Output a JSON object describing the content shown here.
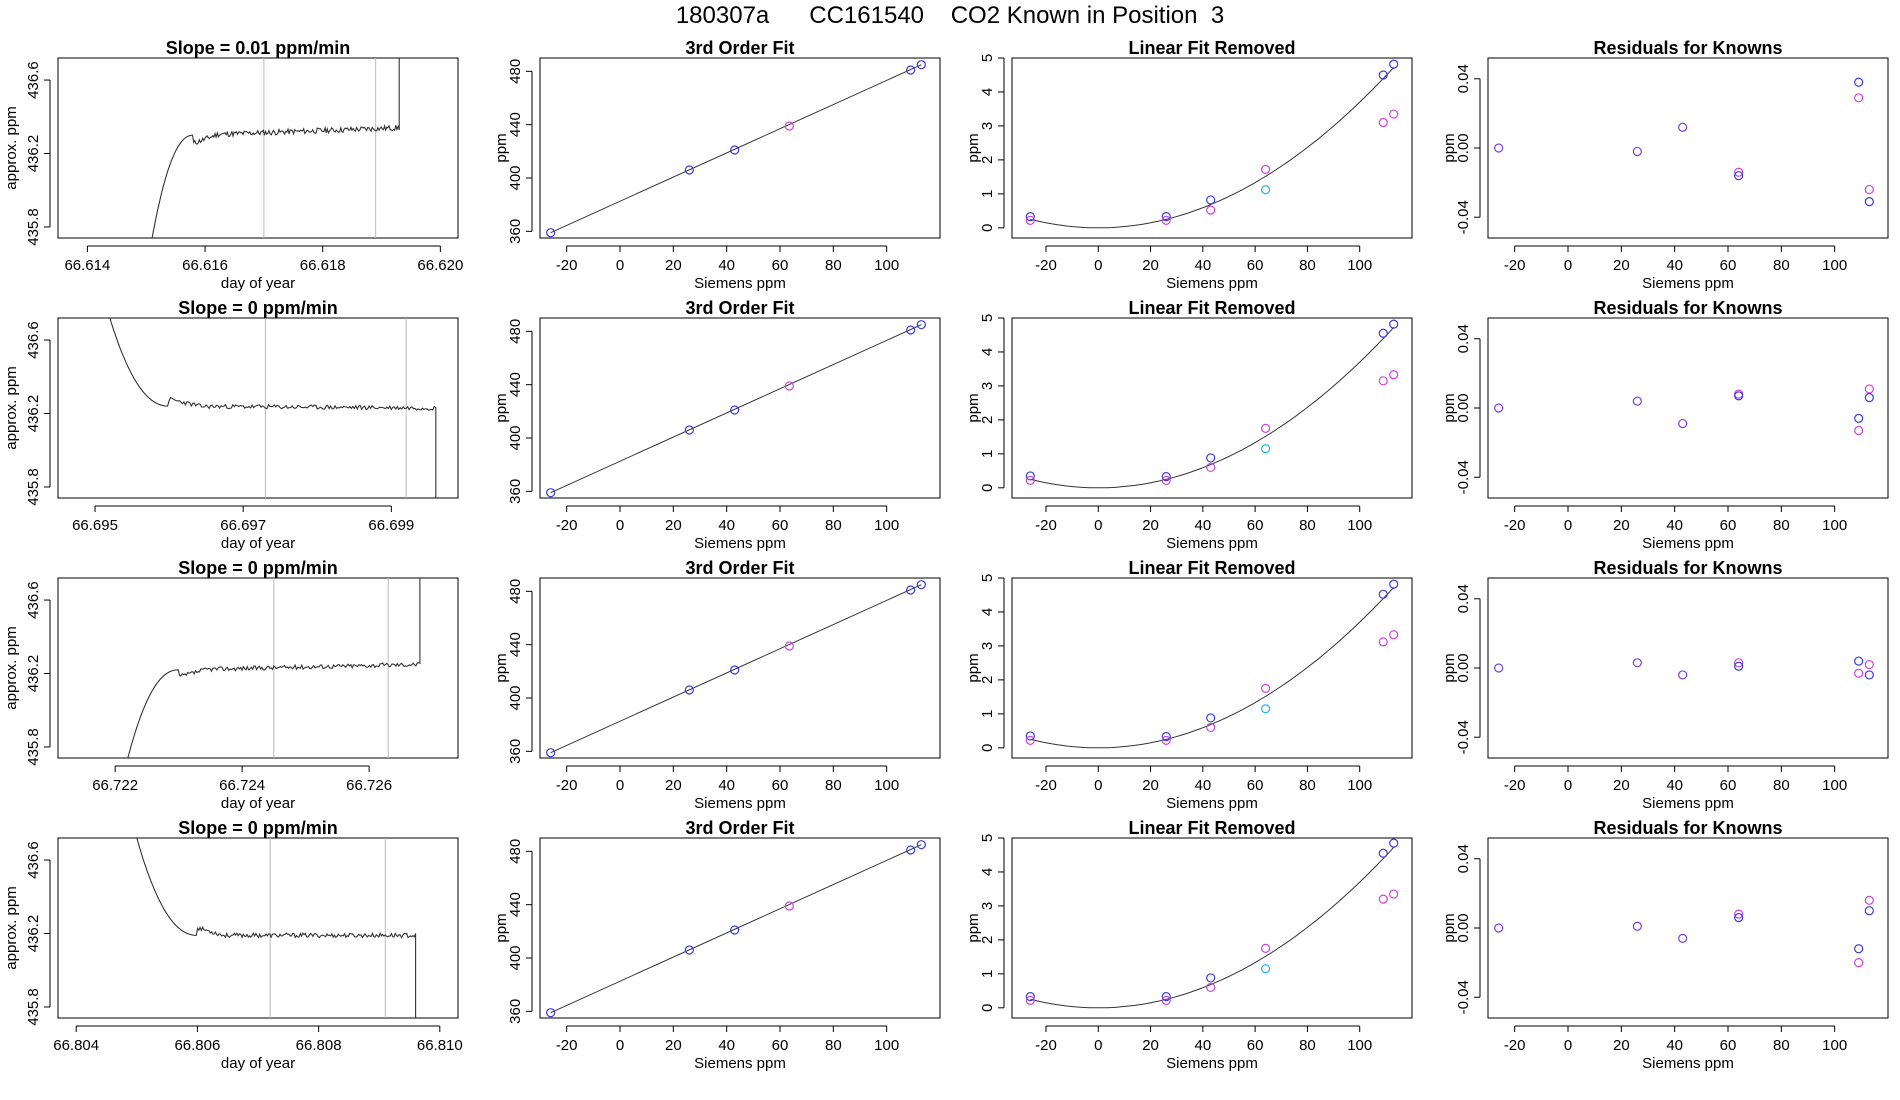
{
  "page_title": "180307a      CC161540    CO2 Known in Position  3",
  "colors": {
    "line": "#333333",
    "vline": "#bbbbbb",
    "blue": "#3b3bdb",
    "magenta": "#cc44dd",
    "cyan": "#22b5e8"
  },
  "chart_data": [
    {
      "type": "line",
      "title": "Slope =  0.01  ppm/min",
      "xlabel": "day of year",
      "ylabel": "approx. ppm",
      "xlim": [
        66.6135,
        66.6203
      ],
      "ylim": [
        435.74,
        436.72
      ],
      "xticks": [
        66.614,
        66.616,
        66.618,
        66.62
      ],
      "xtick_labels": [
        "66.614",
        "66.616",
        "66.618",
        "66.620"
      ],
      "yticks": [
        435.8,
        436.2,
        436.6
      ],
      "ytick_labels": [
        "435.8",
        "436.2",
        "436.6"
      ],
      "vlines": [
        66.617,
        66.6189
      ],
      "trace": {
        "start": 66.6151,
        "level": 436.3,
        "dip": 435.74,
        "rise": 66.6158,
        "end": 66.6193,
        "end_dir": "up",
        "wiggle": 0.015,
        "tilt": 0.04,
        "seed": 11
      }
    },
    {
      "type": "scatter",
      "title": "3rd Order Fit",
      "xlabel": "Siemens ppm",
      "ylabel": "ppm",
      "xlim": [
        -30,
        120
      ],
      "ylim": [
        355,
        490
      ],
      "xticks": [
        -20,
        0,
        20,
        40,
        60,
        80,
        100
      ],
      "yticks": [
        360,
        400,
        440,
        480
      ],
      "fit_line": [
        [
          -26,
          359
        ],
        [
          113,
          485
        ]
      ],
      "points": [
        {
          "x": -26,
          "y": 359,
          "c": "blue"
        },
        {
          "x": 26,
          "y": 406,
          "c": "blue"
        },
        {
          "x": 43,
          "y": 421,
          "c": "blue"
        },
        {
          "x": 63.5,
          "y": 439,
          "c": "magenta"
        },
        {
          "x": 109,
          "y": 481,
          "c": "blue"
        },
        {
          "x": 113,
          "y": 485,
          "c": "blue"
        }
      ]
    },
    {
      "type": "scatter",
      "title": "Linear Fit Removed",
      "xlabel": "Siemens ppm",
      "ylabel": "ppm",
      "xlim": [
        -33,
        120
      ],
      "ylim": [
        -0.3,
        5.0
      ],
      "xticks": [
        -20,
        0,
        20,
        40,
        60,
        80,
        100
      ],
      "yticks": [
        0,
        1,
        2,
        3,
        4,
        5
      ],
      "curve": {
        "a": 0.00037,
        "from": -26,
        "to": 113
      },
      "points": [
        {
          "x": -26,
          "y": 0.33,
          "c": "blue"
        },
        {
          "x": -26,
          "y": 0.22,
          "c": "magenta"
        },
        {
          "x": 26,
          "y": 0.33,
          "c": "blue"
        },
        {
          "x": 26,
          "y": 0.22,
          "c": "magenta"
        },
        {
          "x": 43,
          "y": 0.82,
          "c": "blue"
        },
        {
          "x": 43,
          "y": 0.52,
          "c": "magenta"
        },
        {
          "x": 64,
          "y": 1.72,
          "c": "magenta"
        },
        {
          "x": 64,
          "y": 1.12,
          "c": "cyan"
        },
        {
          "x": 109,
          "y": 4.5,
          "c": "blue"
        },
        {
          "x": 109,
          "y": 3.1,
          "c": "magenta"
        },
        {
          "x": 113,
          "y": 4.82,
          "c": "blue"
        },
        {
          "x": 113,
          "y": 3.35,
          "c": "magenta"
        }
      ]
    },
    {
      "type": "scatter",
      "title": "Residuals for Knowns",
      "xlabel": "Siemens ppm",
      "ylabel": "ppm",
      "xlim": [
        -30,
        120
      ],
      "ylim": [
        -0.052,
        0.052
      ],
      "xticks": [
        -20,
        0,
        20,
        40,
        60,
        80,
        100
      ],
      "yticks": [
        -0.04,
        0,
        0.04
      ],
      "ytick_labels": [
        "-0.04",
        "0.00",
        "0.04"
      ],
      "points": [
        {
          "x": -26,
          "y": 0.0,
          "c": "purple"
        },
        {
          "x": 26,
          "y": -0.002,
          "c": "purple"
        },
        {
          "x": 43,
          "y": 0.012,
          "c": "purple"
        },
        {
          "x": 64,
          "y": -0.014,
          "c": "magenta"
        },
        {
          "x": 64,
          "y": -0.016,
          "c": "blue"
        },
        {
          "x": 109,
          "y": 0.038,
          "c": "blue"
        },
        {
          "x": 109,
          "y": 0.029,
          "c": "magenta"
        },
        {
          "x": 113,
          "y": -0.024,
          "c": "magenta"
        },
        {
          "x": 113,
          "y": -0.031,
          "c": "blue"
        }
      ]
    },
    {
      "type": "line",
      "title": "Slope =  0  ppm/min",
      "xlabel": "day of year",
      "ylabel": "approx. ppm",
      "xlim": [
        66.6945,
        66.6999
      ],
      "ylim": [
        435.74,
        436.72
      ],
      "xticks": [
        66.695,
        66.697,
        66.699
      ],
      "xtick_labels": [
        "66.695",
        "66.697",
        "66.699"
      ],
      "yticks": [
        435.8,
        436.2,
        436.6
      ],
      "ytick_labels": [
        "435.8",
        "436.2",
        "436.6"
      ],
      "vlines": [
        66.6973,
        66.6992
      ],
      "trace": {
        "start": 66.6952,
        "level": 436.24,
        "dip": 436.72,
        "rise": 66.696,
        "end": 66.6996,
        "end_dir": "down",
        "wiggle": 0.012,
        "tilt": -0.01,
        "seed": 23
      }
    },
    {
      "type": "scatter",
      "title": "3rd Order Fit",
      "xlabel": "Siemens ppm",
      "ylabel": "ppm",
      "xlim": [
        -30,
        120
      ],
      "ylim": [
        355,
        490
      ],
      "xticks": [
        -20,
        0,
        20,
        40,
        60,
        80,
        100
      ],
      "yticks": [
        360,
        400,
        440,
        480
      ],
      "fit_line": [
        [
          -26,
          359
        ],
        [
          113,
          485
        ]
      ],
      "points": [
        {
          "x": -26,
          "y": 359,
          "c": "blue"
        },
        {
          "x": 26,
          "y": 406,
          "c": "blue"
        },
        {
          "x": 43,
          "y": 421,
          "c": "blue"
        },
        {
          "x": 63.5,
          "y": 439,
          "c": "magenta"
        },
        {
          "x": 109,
          "y": 481,
          "c": "blue"
        },
        {
          "x": 113,
          "y": 485,
          "c": "blue"
        }
      ]
    },
    {
      "type": "scatter",
      "title": "Linear Fit Removed",
      "xlabel": "Siemens ppm",
      "ylabel": "ppm",
      "xlim": [
        -33,
        120
      ],
      "ylim": [
        -0.3,
        5.0
      ],
      "xticks": [
        -20,
        0,
        20,
        40,
        60,
        80,
        100
      ],
      "yticks": [
        0,
        1,
        2,
        3,
        4,
        5
      ],
      "curve": {
        "a": 0.00037,
        "from": -26,
        "to": 113
      },
      "points": [
        {
          "x": -26,
          "y": 0.35,
          "c": "blue"
        },
        {
          "x": -26,
          "y": 0.22,
          "c": "magenta"
        },
        {
          "x": 26,
          "y": 0.33,
          "c": "blue"
        },
        {
          "x": 26,
          "y": 0.22,
          "c": "magenta"
        },
        {
          "x": 43,
          "y": 0.88,
          "c": "blue"
        },
        {
          "x": 43,
          "y": 0.6,
          "c": "magenta"
        },
        {
          "x": 64,
          "y": 1.75,
          "c": "magenta"
        },
        {
          "x": 64,
          "y": 1.15,
          "c": "cyan"
        },
        {
          "x": 109,
          "y": 4.55,
          "c": "blue"
        },
        {
          "x": 109,
          "y": 3.15,
          "c": "magenta"
        },
        {
          "x": 113,
          "y": 4.82,
          "c": "blue"
        },
        {
          "x": 113,
          "y": 3.33,
          "c": "magenta"
        }
      ]
    },
    {
      "type": "scatter",
      "title": "Residuals for Knowns",
      "xlabel": "Siemens ppm",
      "ylabel": "ppm",
      "xlim": [
        -30,
        120
      ],
      "ylim": [
        -0.052,
        0.052
      ],
      "xticks": [
        -20,
        0,
        20,
        40,
        60,
        80,
        100
      ],
      "yticks": [
        -0.04,
        0,
        0.04
      ],
      "ytick_labels": [
        "-0.04",
        "0.00",
        "0.04"
      ],
      "points": [
        {
          "x": -26,
          "y": 0.0,
          "c": "purple"
        },
        {
          "x": 26,
          "y": 0.004,
          "c": "purple"
        },
        {
          "x": 43,
          "y": -0.009,
          "c": "purple"
        },
        {
          "x": 64,
          "y": 0.008,
          "c": "magenta"
        },
        {
          "x": 64,
          "y": 0.007,
          "c": "blue"
        },
        {
          "x": 109,
          "y": -0.006,
          "c": "blue"
        },
        {
          "x": 109,
          "y": -0.013,
          "c": "magenta"
        },
        {
          "x": 113,
          "y": 0.011,
          "c": "magenta"
        },
        {
          "x": 113,
          "y": 0.006,
          "c": "blue"
        }
      ]
    },
    {
      "type": "line",
      "title": "Slope =  0  ppm/min",
      "xlabel": "day of year",
      "ylabel": "approx. ppm",
      "xlim": [
        66.7211,
        66.7274
      ],
      "ylim": [
        435.74,
        436.72
      ],
      "xticks": [
        66.722,
        66.724,
        66.726
      ],
      "xtick_labels": [
        "66.722",
        "66.724",
        "66.726"
      ],
      "yticks": [
        435.8,
        436.2,
        436.6
      ],
      "ytick_labels": [
        "435.8",
        "436.2",
        "436.6"
      ],
      "vlines": [
        66.7245,
        66.7263
      ],
      "trace": {
        "start": 66.7222,
        "level": 436.22,
        "dip": 435.74,
        "rise": 66.723,
        "end": 66.7268,
        "end_dir": "up",
        "wiggle": 0.012,
        "tilt": 0.03,
        "seed": 37
      }
    },
    {
      "type": "scatter",
      "title": "3rd Order Fit",
      "xlabel": "Siemens ppm",
      "ylabel": "ppm",
      "xlim": [
        -30,
        120
      ],
      "ylim": [
        355,
        490
      ],
      "xticks": [
        -20,
        0,
        20,
        40,
        60,
        80,
        100
      ],
      "yticks": [
        360,
        400,
        440,
        480
      ],
      "fit_line": [
        [
          -26,
          359
        ],
        [
          113,
          485
        ]
      ],
      "points": [
        {
          "x": -26,
          "y": 359,
          "c": "blue"
        },
        {
          "x": 26,
          "y": 406,
          "c": "blue"
        },
        {
          "x": 43,
          "y": 421,
          "c": "blue"
        },
        {
          "x": 63.5,
          "y": 439,
          "c": "magenta"
        },
        {
          "x": 109,
          "y": 481,
          "c": "blue"
        },
        {
          "x": 113,
          "y": 485,
          "c": "blue"
        }
      ]
    },
    {
      "type": "scatter",
      "title": "Linear Fit Removed",
      "xlabel": "Siemens ppm",
      "ylabel": "ppm",
      "xlim": [
        -33,
        120
      ],
      "ylim": [
        -0.3,
        5.0
      ],
      "xticks": [
        -20,
        0,
        20,
        40,
        60,
        80,
        100
      ],
      "yticks": [
        0,
        1,
        2,
        3,
        4,
        5
      ],
      "curve": {
        "a": 0.00037,
        "from": -26,
        "to": 113
      },
      "points": [
        {
          "x": -26,
          "y": 0.35,
          "c": "blue"
        },
        {
          "x": -26,
          "y": 0.22,
          "c": "magenta"
        },
        {
          "x": 26,
          "y": 0.33,
          "c": "blue"
        },
        {
          "x": 26,
          "y": 0.22,
          "c": "magenta"
        },
        {
          "x": 43,
          "y": 0.88,
          "c": "blue"
        },
        {
          "x": 43,
          "y": 0.6,
          "c": "magenta"
        },
        {
          "x": 64,
          "y": 1.75,
          "c": "magenta"
        },
        {
          "x": 64,
          "y": 1.15,
          "c": "cyan"
        },
        {
          "x": 109,
          "y": 4.52,
          "c": "blue"
        },
        {
          "x": 109,
          "y": 3.12,
          "c": "magenta"
        },
        {
          "x": 113,
          "y": 4.82,
          "c": "blue"
        },
        {
          "x": 113,
          "y": 3.33,
          "c": "magenta"
        }
      ]
    },
    {
      "type": "scatter",
      "title": "Residuals for Knowns",
      "xlabel": "Siemens ppm",
      "ylabel": "ppm",
      "xlim": [
        -30,
        120
      ],
      "ylim": [
        -0.052,
        0.052
      ],
      "xticks": [
        -20,
        0,
        20,
        40,
        60,
        80,
        100
      ],
      "yticks": [
        -0.04,
        0,
        0.04
      ],
      "ytick_labels": [
        "-0.04",
        "0.00",
        "0.04"
      ],
      "points": [
        {
          "x": -26,
          "y": 0.0,
          "c": "purple"
        },
        {
          "x": 26,
          "y": 0.003,
          "c": "purple"
        },
        {
          "x": 43,
          "y": -0.004,
          "c": "purple"
        },
        {
          "x": 64,
          "y": 0.003,
          "c": "magenta"
        },
        {
          "x": 64,
          "y": 0.001,
          "c": "blue"
        },
        {
          "x": 109,
          "y": 0.004,
          "c": "blue"
        },
        {
          "x": 109,
          "y": -0.003,
          "c": "magenta"
        },
        {
          "x": 113,
          "y": 0.002,
          "c": "magenta"
        },
        {
          "x": 113,
          "y": -0.004,
          "c": "blue"
        }
      ]
    },
    {
      "type": "line",
      "title": "Slope =  0  ppm/min",
      "xlabel": "day of year",
      "ylabel": "approx. ppm",
      "xlim": [
        66.8037,
        66.8103
      ],
      "ylim": [
        435.74,
        436.72
      ],
      "xticks": [
        66.804,
        66.806,
        66.808,
        66.81
      ],
      "xtick_labels": [
        "66.804",
        "66.806",
        "66.808",
        "66.810"
      ],
      "yticks": [
        435.8,
        436.2,
        436.6
      ],
      "ytick_labels": [
        "435.8",
        "436.2",
        "436.6"
      ],
      "vlines": [
        66.8072,
        66.8091
      ],
      "trace": {
        "start": 66.805,
        "level": 436.19,
        "dip": 436.72,
        "rise": 66.806,
        "end": 66.8096,
        "end_dir": "down",
        "wiggle": 0.012,
        "tilt": 0.0,
        "seed": 53
      }
    },
    {
      "type": "scatter",
      "title": "3rd Order Fit",
      "xlabel": "Siemens ppm",
      "ylabel": "ppm",
      "xlim": [
        -30,
        120
      ],
      "ylim": [
        355,
        490
      ],
      "xticks": [
        -20,
        0,
        20,
        40,
        60,
        80,
        100
      ],
      "yticks": [
        360,
        400,
        440,
        480
      ],
      "fit_line": [
        [
          -26,
          359
        ],
        [
          113,
          485
        ]
      ],
      "points": [
        {
          "x": -26,
          "y": 359,
          "c": "blue"
        },
        {
          "x": 26,
          "y": 406,
          "c": "blue"
        },
        {
          "x": 43,
          "y": 421,
          "c": "blue"
        },
        {
          "x": 63.5,
          "y": 439,
          "c": "magenta"
        },
        {
          "x": 109,
          "y": 481,
          "c": "blue"
        },
        {
          "x": 113,
          "y": 485,
          "c": "blue"
        }
      ]
    },
    {
      "type": "scatter",
      "title": "Linear Fit Removed",
      "xlabel": "Siemens ppm",
      "ylabel": "ppm",
      "xlim": [
        -33,
        120
      ],
      "ylim": [
        -0.3,
        5.0
      ],
      "xticks": [
        -20,
        0,
        20,
        40,
        60,
        80,
        100
      ],
      "yticks": [
        0,
        1,
        2,
        3,
        4,
        5
      ],
      "curve": {
        "a": 0.00037,
        "from": -26,
        "to": 113
      },
      "points": [
        {
          "x": -26,
          "y": 0.33,
          "c": "blue"
        },
        {
          "x": -26,
          "y": 0.22,
          "c": "magenta"
        },
        {
          "x": 26,
          "y": 0.33,
          "c": "blue"
        },
        {
          "x": 26,
          "y": 0.22,
          "c": "magenta"
        },
        {
          "x": 43,
          "y": 0.88,
          "c": "blue"
        },
        {
          "x": 43,
          "y": 0.6,
          "c": "magenta"
        },
        {
          "x": 64,
          "y": 1.75,
          "c": "magenta"
        },
        {
          "x": 64,
          "y": 1.15,
          "c": "cyan"
        },
        {
          "x": 109,
          "y": 4.55,
          "c": "blue"
        },
        {
          "x": 109,
          "y": 3.2,
          "c": "magenta"
        },
        {
          "x": 113,
          "y": 4.85,
          "c": "blue"
        },
        {
          "x": 113,
          "y": 3.35,
          "c": "magenta"
        }
      ]
    },
    {
      "type": "scatter",
      "title": "Residuals for Knowns",
      "xlabel": "Siemens ppm",
      "ylabel": "ppm",
      "xlim": [
        -30,
        120
      ],
      "ylim": [
        -0.052,
        0.052
      ],
      "xticks": [
        -20,
        0,
        20,
        40,
        60,
        80,
        100
      ],
      "yticks": [
        -0.04,
        0,
        0.04
      ],
      "ytick_labels": [
        "-0.04",
        "0.00",
        "0.04"
      ],
      "points": [
        {
          "x": -26,
          "y": 0.0,
          "c": "purple"
        },
        {
          "x": 26,
          "y": 0.001,
          "c": "purple"
        },
        {
          "x": 43,
          "y": -0.006,
          "c": "purple"
        },
        {
          "x": 64,
          "y": 0.008,
          "c": "magenta"
        },
        {
          "x": 64,
          "y": 0.006,
          "c": "blue"
        },
        {
          "x": 109,
          "y": -0.012,
          "c": "blue"
        },
        {
          "x": 109,
          "y": -0.02,
          "c": "magenta"
        },
        {
          "x": 113,
          "y": 0.016,
          "c": "magenta"
        },
        {
          "x": 113,
          "y": 0.01,
          "c": "blue"
        }
      ]
    }
  ]
}
